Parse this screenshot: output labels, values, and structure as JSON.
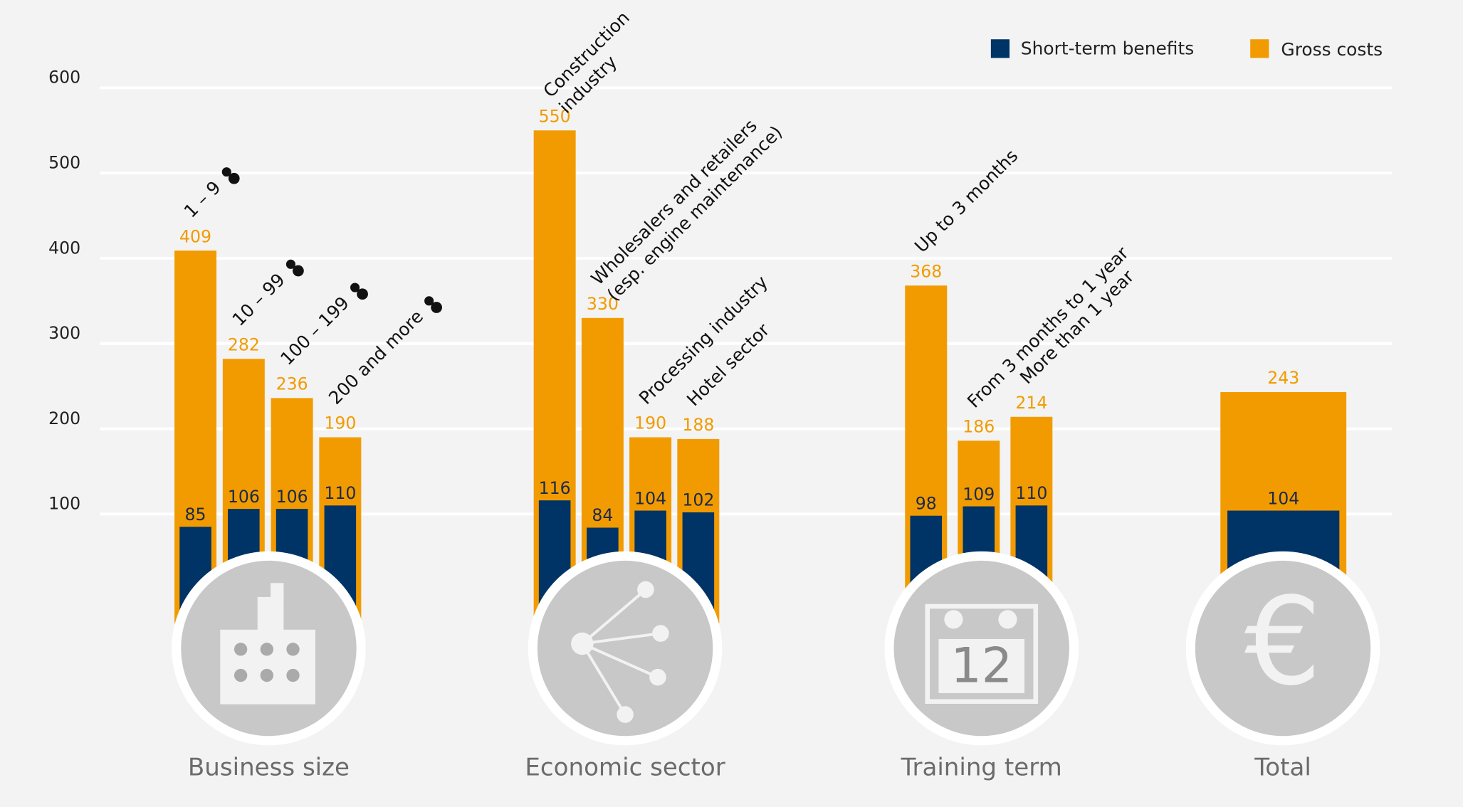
{
  "chart_data": {
    "type": "bar",
    "series": [
      {
        "name": "Short-term benefits",
        "color": "#003366"
      },
      {
        "name": "Gross costs",
        "color": "#f29b00"
      }
    ],
    "ylim": [
      0,
      600
    ],
    "yticks": [
      100,
      200,
      300,
      400,
      500,
      600
    ],
    "grid": true,
    "groups": [
      {
        "label": "Business size",
        "categories": [
          "1 – 9",
          "10 – 99",
          "100 – 199",
          "200 and more"
        ],
        "series": [
          {
            "values": [
              85,
              106,
              106,
              110
            ]
          },
          {
            "values": [
              409,
              282,
              236,
              190
            ]
          }
        ]
      },
      {
        "label": "Economic sector",
        "categories": [
          [
            "Construction",
            "industry"
          ],
          [
            "Wholesalers and retailers",
            "(esp. engine maintenance)"
          ],
          "Processing industry",
          "Hotel sector"
        ],
        "series": [
          {
            "values": [
              116,
              84,
              104,
              102
            ]
          },
          {
            "values": [
              550,
              330,
              190,
              188
            ]
          }
        ],
        "icon_text": null
      },
      {
        "label": "Training term",
        "categories": [
          "Up to 3 months",
          "From 3 months to 1 year",
          "More than 1 year"
        ],
        "series": [
          {
            "values": [
              98,
              109,
              110
            ]
          },
          {
            "values": [
              368,
              186,
              214
            ]
          }
        ],
        "icon_text": "12"
      },
      {
        "label": "Total",
        "categories": [
          null
        ],
        "series": [
          {
            "values": [
              104
            ]
          },
          {
            "values": [
              243
            ]
          }
        ],
        "icon_text": "€"
      }
    ]
  }
}
